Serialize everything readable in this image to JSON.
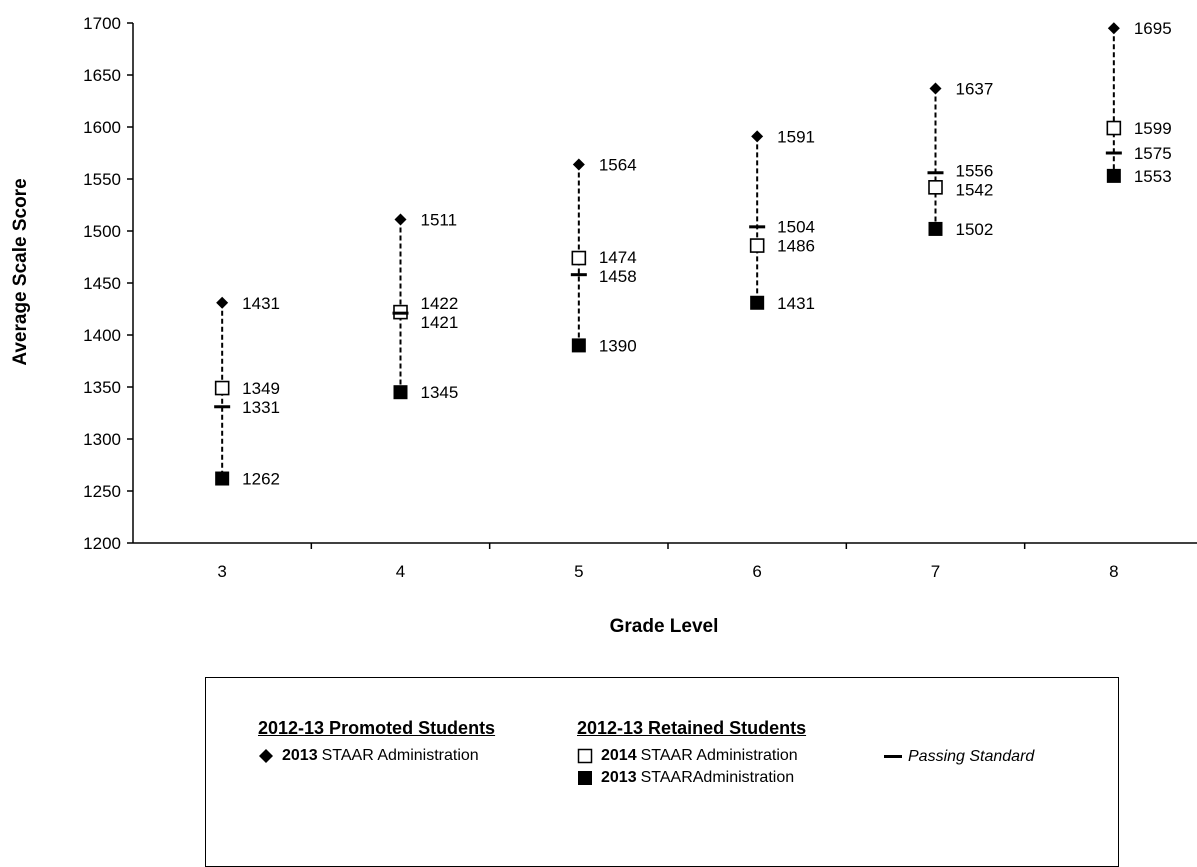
{
  "chart_data": {
    "type": "scatter",
    "xlabel": "Grade Level",
    "ylabel": "Average Scale Score",
    "ylim": [
      1200,
      1700
    ],
    "yticks": [
      1200,
      1250,
      1300,
      1350,
      1400,
      1450,
      1500,
      1550,
      1600,
      1650,
      1700
    ],
    "categories": [
      "3",
      "4",
      "5",
      "6",
      "7",
      "8"
    ],
    "grid": false,
    "connector": "dashed vertical line per grade from min to max score",
    "series": [
      {
        "name": "2013 STAAR Administration (Promoted)",
        "marker": "diamond-filled",
        "values": [
          1431,
          1511,
          1564,
          1591,
          1637,
          1695
        ]
      },
      {
        "name": "2014 STAAR Administration (Retained)",
        "marker": "square-open",
        "values": [
          1349,
          1422,
          1474,
          1486,
          1542,
          1599
        ]
      },
      {
        "name": "2013 STAARAdministration (Retained)",
        "marker": "square-filled",
        "values": [
          1262,
          1345,
          1390,
          1431,
          1502,
          1553
        ]
      },
      {
        "name": "Passing Standard",
        "marker": "dash",
        "values": [
          1331,
          1421,
          1458,
          1504,
          1556,
          1575
        ]
      }
    ],
    "label_offsets_note": "labels drawn to the right of each marker"
  },
  "legend": {
    "promoted_heading": "2012-13 Promoted Students",
    "retained_heading": "2012-13 Retained Students",
    "promoted_2013_year": "2013",
    "promoted_2013_text": "STAAR Administration",
    "retained_2014_year": "2014",
    "retained_2014_text": "STAAR Administration",
    "retained_2013_year": "2013",
    "retained_2013_text": "STAARAdministration",
    "passing_text": "Passing Standard"
  }
}
